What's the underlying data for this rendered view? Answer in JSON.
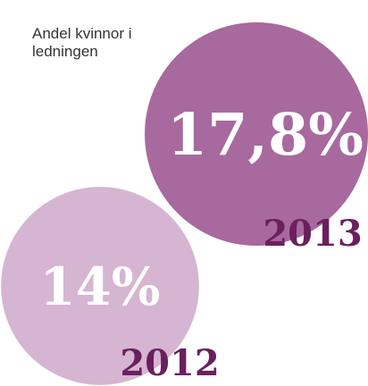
{
  "chart_data": {
    "type": "bubble",
    "title": "Andel kvinnor i ledningen",
    "categories": [
      "2012",
      "2013"
    ],
    "values": [
      14,
      17.8
    ],
    "value_labels": [
      "14%",
      "17,8%"
    ],
    "colors": [
      "#d5b5d1",
      "#a8699e"
    ],
    "label_color": "#6b1f5e"
  }
}
